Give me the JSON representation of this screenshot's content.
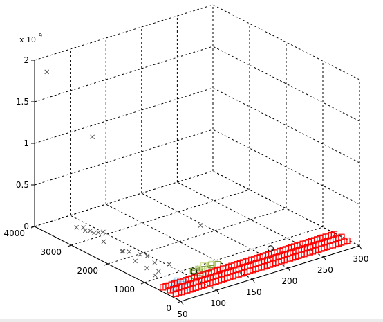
{
  "chart_data": {
    "type": "scatter3d",
    "title": "",
    "xlabel": "",
    "ylabel": "",
    "zlabel": "",
    "exponent_label": {
      "base": "x 10",
      "power": "9"
    },
    "xlim": [
      50,
      300
    ],
    "ylim": [
      0,
      4000
    ],
    "zlim": [
      0,
      2000000000
    ],
    "x_ticks": [
      "50",
      "100",
      "150",
      "200",
      "250",
      "300"
    ],
    "y_ticks": [
      "0",
      "1000",
      "2000",
      "3000",
      "4000"
    ],
    "z_ticks": [
      "0",
      "0.5",
      "1",
      "1.5",
      "2"
    ],
    "grid": true,
    "legend": "none",
    "series": [
      {
        "marker": "x",
        "color": "#555555",
        "points": [
          [
            62,
            3900,
            1850000000
          ],
          [
            90,
            3200,
            1150000000
          ],
          [
            185,
            2100,
            80000000
          ],
          [
            78,
            3400,
            50000000
          ],
          [
            80,
            3200,
            50000000
          ],
          [
            82,
            3000,
            60000000
          ],
          [
            88,
            3000,
            50000000
          ],
          [
            85,
            3350,
            40000000
          ],
          [
            95,
            3000,
            40000000
          ],
          [
            87,
            3200,
            30000000
          ],
          [
            80,
            2700,
            30000000
          ],
          [
            75,
            2100,
            60000000
          ],
          [
            79,
            2150,
            40000000
          ],
          [
            85,
            2100,
            30000000
          ],
          [
            90,
            1900,
            30000000
          ],
          [
            95,
            1800,
            20000000
          ],
          [
            90,
            1500,
            20000000
          ],
          [
            73,
            1700,
            40000000
          ],
          [
            74,
            1400,
            20000000
          ],
          [
            70,
            1100,
            10000000
          ],
          [
            80,
            1200,
            10000000
          ],
          [
            100,
            1300,
            20000000
          ]
        ]
      },
      {
        "marker": "square",
        "color": "#7a9a3a",
        "points": [
          [
            110,
            800,
            0
          ],
          [
            115,
            750,
            0
          ],
          [
            118,
            820,
            0
          ],
          [
            123,
            850,
            0
          ],
          [
            128,
            800,
            0
          ],
          [
            133,
            780,
            0
          ],
          [
            138,
            900,
            0
          ],
          [
            145,
            850,
            0
          ],
          [
            105,
            700,
            0
          ],
          [
            112,
            880,
            0
          ]
        ]
      },
      {
        "marker": "square",
        "color": "#cfe08f",
        "points": [
          [
            120,
            900,
            0
          ],
          [
            130,
            950,
            0
          ],
          [
            140,
            920,
            0
          ]
        ]
      },
      {
        "marker": "circle",
        "color": "#000000",
        "points": [
          [
            218,
            830,
            0
          ],
          [
            112,
            860,
            0
          ]
        ]
      },
      {
        "marker": "square",
        "color": "#99d6ff",
        "points": [
          [
            72,
            600,
            0
          ],
          [
            75,
            500,
            0
          ],
          [
            78,
            680,
            0
          ],
          [
            80,
            550,
            0
          ],
          [
            82,
            720,
            0
          ],
          [
            85,
            600,
            0
          ],
          [
            68,
            520,
            0
          ],
          [
            73,
            700,
            0
          ],
          [
            77,
            420,
            0
          ],
          [
            83,
            480,
            0
          ]
        ]
      }
    ],
    "red_band": {
      "marker": "square",
      "color": "#ff0000",
      "x_from": 58,
      "x_to": 298,
      "x_step": 4,
      "y_values": [
        300,
        480,
        650
      ]
    }
  }
}
